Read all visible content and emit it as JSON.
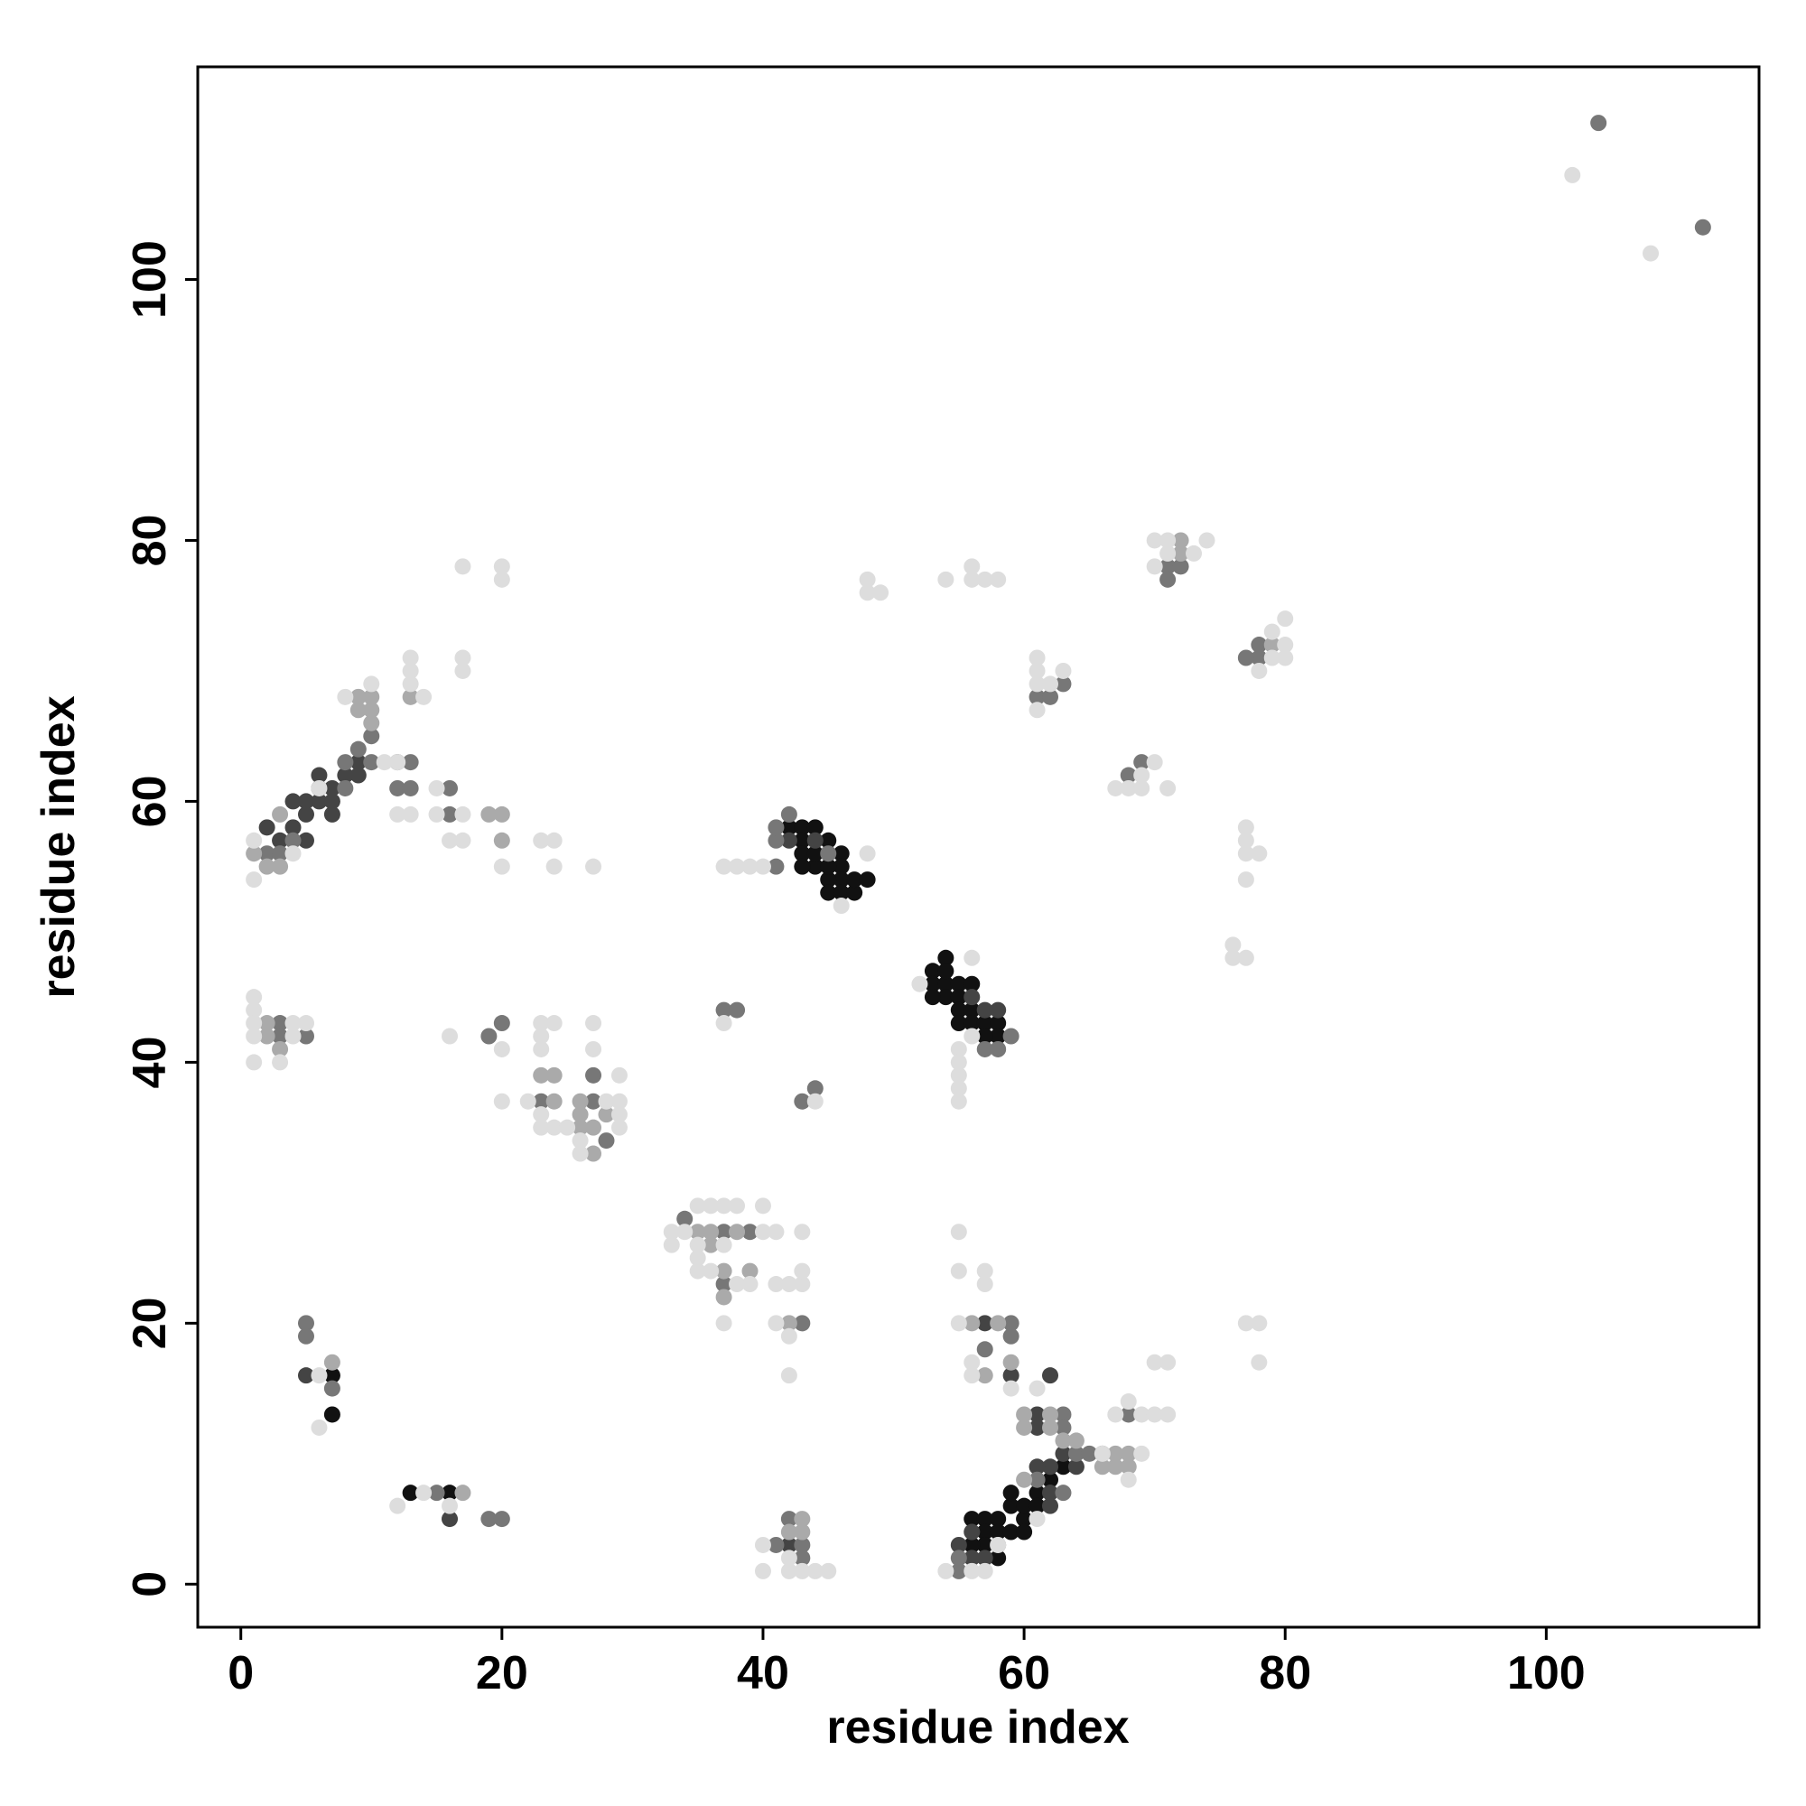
{
  "chart_data": {
    "type": "scatter",
    "xlabel": "residue index",
    "ylabel": "residue index",
    "xlim": [
      -3.3,
      116.3
    ],
    "ylim": [
      -3.3,
      116.3
    ],
    "xticks": [
      0,
      20,
      40,
      60,
      80,
      100
    ],
    "yticks": [
      0,
      20,
      40,
      60,
      80,
      100
    ],
    "series": [
      {
        "color": "#111111",
        "x": [
          7,
          7,
          13,
          16,
          56,
          57,
          58,
          57,
          58,
          59,
          57,
          56,
          58,
          59,
          60,
          60,
          59,
          61,
          62,
          63,
          61,
          60,
          42,
          43,
          43,
          43,
          44,
          44,
          45,
          45,
          46,
          46,
          46,
          45,
          45,
          46,
          47,
          47,
          48,
          44,
          43,
          45,
          53,
          54,
          53,
          54,
          54,
          53,
          55,
          56,
          55,
          55,
          56,
          55,
          56,
          54,
          57,
          58,
          58,
          57
        ],
        "y": [
          16,
          13,
          7,
          7,
          5,
          5,
          5,
          4,
          4,
          4,
          3,
          3,
          2,
          6,
          5,
          6,
          7,
          7,
          8,
          9,
          6,
          4,
          58,
          58,
          57,
          56,
          55,
          58,
          57,
          56,
          56,
          55,
          54,
          54,
          53,
          53,
          53,
          54,
          54,
          56,
          55,
          55,
          47,
          48,
          46,
          46,
          45,
          45,
          46,
          46,
          45,
          44,
          44,
          43,
          43,
          47,
          43,
          43,
          42,
          42
        ]
      },
      {
        "color": "#444444",
        "x": [
          2,
          3,
          4,
          4,
          5,
          5,
          6,
          6,
          7,
          7,
          8,
          9,
          9,
          6,
          5,
          7,
          5,
          16,
          55,
          56,
          57,
          56,
          62,
          62,
          63,
          62,
          61,
          61,
          61,
          64,
          59,
          57,
          62,
          42,
          44,
          58,
          57,
          56,
          42
        ],
        "y": [
          58,
          57,
          58,
          60,
          59,
          57,
          60,
          61,
          61,
          59,
          62,
          62,
          63,
          62,
          60,
          60,
          16,
          5,
          3,
          2,
          2,
          4,
          6,
          9,
          10,
          7,
          9,
          13,
          12,
          9,
          16,
          20,
          16,
          3,
          57,
          44,
          44,
          45,
          57
        ]
      },
      {
        "color": "#777777",
        "x": [
          104,
          112,
          2,
          3,
          4,
          8,
          9,
          10,
          10,
          8,
          12,
          13,
          12,
          13,
          16,
          16,
          3,
          3,
          5,
          19,
          20,
          23,
          27,
          27,
          28,
          34,
          37,
          39,
          37,
          43,
          5,
          5,
          7,
          15,
          19,
          20,
          42,
          43,
          41,
          43,
          55,
          58,
          61,
          63,
          63,
          64,
          65,
          66,
          63,
          57,
          59,
          59,
          68,
          55,
          42,
          41,
          41,
          41,
          45,
          59,
          57,
          58,
          37,
          38,
          43,
          44,
          61,
          62,
          63,
          68,
          69,
          71,
          72,
          71,
          78,
          78,
          77
        ],
        "y": [
          112,
          104,
          56,
          56,
          57,
          63,
          64,
          63,
          65,
          61,
          63,
          63,
          61,
          61,
          61,
          59,
          43,
          42,
          42,
          42,
          43,
          37,
          37,
          39,
          34,
          28,
          27,
          27,
          23,
          20,
          20,
          19,
          15,
          7,
          5,
          5,
          5,
          3,
          3,
          2,
          2,
          3,
          8,
          13,
          12,
          10,
          10,
          10,
          7,
          18,
          20,
          19,
          13,
          1,
          59,
          57,
          58,
          55,
          56,
          42,
          41,
          41,
          44,
          44,
          37,
          38,
          68,
          68,
          69,
          62,
          63,
          78,
          78,
          77,
          72,
          71,
          71
        ]
      },
      {
        "color": "#aaaaaa",
        "x": [
          9,
          9,
          10,
          10,
          10,
          13,
          3,
          1,
          2,
          3,
          20,
          20,
          19,
          2,
          3,
          2,
          23,
          24,
          26,
          26,
          27,
          26,
          24,
          28,
          27,
          35,
          36,
          38,
          36,
          37,
          39,
          37,
          42,
          7,
          17,
          42,
          43,
          43,
          66,
          67,
          67,
          68,
          68,
          60,
          63,
          64,
          62,
          62,
          56,
          58,
          59,
          57,
          60,
          60,
          72,
          72,
          79
        ],
        "y": [
          67,
          68,
          66,
          67,
          68,
          68,
          59,
          56,
          55,
          55,
          59,
          57,
          59,
          43,
          41,
          42,
          39,
          37,
          37,
          35,
          35,
          36,
          39,
          36,
          33,
          27,
          27,
          27,
          26,
          24,
          24,
          22,
          20,
          17,
          7,
          4,
          5,
          4,
          9,
          10,
          9,
          10,
          9,
          8,
          11,
          11,
          12,
          13,
          20,
          20,
          17,
          16,
          13,
          12,
          79,
          80,
          72
        ]
      },
      {
        "color": "#dddddd",
        "x": [
          102,
          108,
          1,
          1,
          4,
          6,
          10,
          11,
          13,
          13,
          13,
          14,
          12,
          13,
          15,
          15,
          16,
          17,
          17,
          17,
          17,
          17,
          20,
          20,
          20,
          23,
          24,
          24,
          27,
          8,
          12,
          1,
          1,
          1,
          1,
          1,
          3,
          4,
          5,
          4,
          16,
          20,
          20,
          22,
          23,
          23,
          24,
          23,
          23,
          23,
          24,
          25,
          26,
          26,
          27,
          27,
          29,
          29,
          29,
          28,
          29,
          33,
          33,
          34,
          35,
          36,
          37,
          35,
          37,
          38,
          40,
          35,
          35,
          36,
          38,
          39,
          37,
          40,
          41,
          42,
          42,
          43,
          41,
          43,
          43,
          41,
          42,
          6,
          6,
          14,
          12,
          16,
          40,
          40,
          42,
          43,
          44,
          45,
          42,
          54,
          56,
          57,
          55,
          56,
          56,
          57,
          57,
          55,
          55,
          59,
          61,
          61,
          58,
          66,
          69,
          68,
          68,
          67,
          69,
          70,
          71,
          70,
          71,
          77,
          78,
          78,
          37,
          38,
          39,
          40,
          48,
          46,
          52,
          56,
          55,
          55,
          55,
          55,
          55,
          56,
          37,
          44,
          48,
          48,
          49,
          54,
          56,
          56,
          57,
          58,
          61,
          61,
          61,
          61,
          62,
          63,
          67,
          68,
          69,
          69,
          70,
          71,
          70,
          71,
          70,
          71,
          73,
          74,
          78,
          79,
          80,
          80,
          80,
          79,
          77,
          77,
          77,
          78,
          77,
          76,
          76,
          77
        ],
        "y": [
          108,
          102,
          54,
          57,
          56,
          61,
          69,
          63,
          70,
          71,
          69,
          68,
          59,
          59,
          59,
          61,
          57,
          57,
          59,
          70,
          71,
          78,
          77,
          78,
          55,
          57,
          57,
          55,
          55,
          68,
          63,
          45,
          44,
          43,
          42,
          40,
          40,
          43,
          43,
          42,
          42,
          41,
          37,
          37,
          43,
          42,
          43,
          41,
          36,
          35,
          35,
          35,
          34,
          33,
          43,
          41,
          39,
          37,
          35,
          37,
          36,
          27,
          26,
          27,
          29,
          29,
          29,
          26,
          26,
          29,
          29,
          25,
          24,
          24,
          23,
          23,
          20,
          27,
          20,
          19,
          23,
          23,
          23,
          24,
          27,
          27,
          16,
          16,
          12,
          7,
          6,
          6,
          3,
          1,
          1,
          1,
          1,
          1,
          2,
          1,
          1,
          1,
          20,
          17,
          16,
          23,
          24,
          24,
          27,
          15,
          15,
          5,
          3,
          10,
          10,
          8,
          14,
          13,
          13,
          13,
          13,
          17,
          17,
          20,
          20,
          17,
          55,
          55,
          55,
          55,
          56,
          52,
          46,
          48,
          41,
          40,
          39,
          38,
          37,
          42,
          43,
          37,
          77,
          76,
          76,
          77,
          78,
          77,
          77,
          77,
          71,
          70,
          69,
          67,
          69,
          70,
          61,
          61,
          61,
          62,
          63,
          61,
          80,
          80,
          78,
          79,
          79,
          80,
          70,
          71,
          74,
          72,
          71,
          73,
          58,
          57,
          56,
          56,
          54,
          49,
          48,
          48
        ]
      }
    ]
  }
}
